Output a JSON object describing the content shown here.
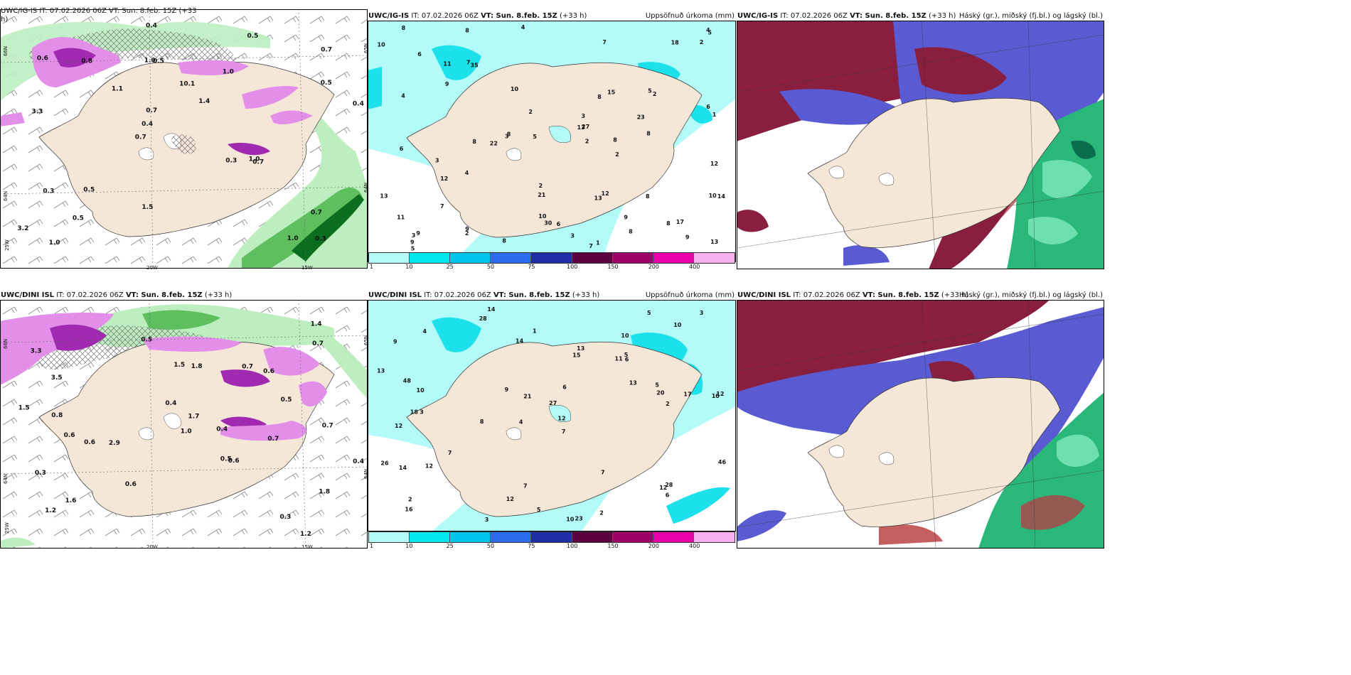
{
  "rows": [
    {
      "model": "UWC/IG-IS",
      "left_header_clipped": "UWC/IG-IS IT: 07.02.2026 06Z VT: Sun. 8.feb. 15Z (+33",
      "left_header_line2": "h)",
      "it": "IT: 07.02.2026 06Z",
      "vt": "VT: Sun. 8.feb. 15Z",
      "lead": "(+33 h)",
      "axis": {
        "lat_left": "66N",
        "lat_right": "65N",
        "lat_low": "64N",
        "lon_far": "25W",
        "lon_a": "20W",
        "lon_b": "15W",
        "lat_right_low": "64N"
      },
      "labels_left": [
        "0.3",
        "3.3",
        "0.7",
        "0.7",
        "1.0",
        "1.0",
        "1.0",
        "10.1",
        "0.3",
        "1.1",
        "3.2",
        "0.5",
        "0.5",
        "1.4",
        "0.7",
        "0.6",
        "0.4",
        "0.4",
        "0.3",
        "0.5",
        "0.4",
        "1.5",
        "0.7",
        "0.8",
        "0.5",
        "0.5",
        "1.0",
        "0.7",
        "1.0"
      ],
      "labels_mid": [
        "8",
        "7",
        "9",
        "9",
        "8",
        "6",
        "8",
        "9",
        "4",
        "10",
        "18",
        "30",
        "8",
        "21",
        "7",
        "13",
        "4",
        "2",
        "22",
        "10",
        "13",
        "5",
        "3",
        "3",
        "2",
        "3",
        "13",
        "12",
        "8",
        "2",
        "5",
        "1",
        "2",
        "2",
        "7",
        "8",
        "10",
        "11",
        "15",
        "17",
        "27",
        "23",
        "14",
        "9",
        "35",
        "12",
        "12",
        "3",
        "11",
        "10",
        "4",
        "6",
        "13",
        "8",
        "4",
        "5",
        "3",
        "2",
        "7",
        "6",
        "8",
        "8",
        "9",
        "8",
        "6",
        "9",
        "2",
        "1",
        "5",
        "8"
      ],
      "labels_right": []
    },
    {
      "model": "UWC/DINI ISL",
      "left_header_clipped": "UWC/DINI ISL IT: 07.02.2026 06Z VT: Sun. 8.feb. 15Z (+33 h)",
      "left_header_line2": "",
      "it": "IT: 07.02.2026 06Z",
      "vt": "VT: Sun. 8.feb. 15Z",
      "lead": "(+33 h)",
      "axis": {
        "lat_left": "66N",
        "lat_right": "65N",
        "lat_low": "64N",
        "lon_far": "25W",
        "lon_a": "20W",
        "lon_b": "15W",
        "lat_right_low": "64N"
      },
      "labels_left": [
        "1.2",
        "0.6",
        "0.5",
        "3.3",
        "1.8",
        "3.5",
        "1.6",
        "2.9",
        "0.6",
        "1.5",
        "0.7",
        "0.3",
        "0.6",
        "0.5",
        "0.4",
        "0.3",
        "0.7",
        "1.7",
        "1.5",
        "1.2",
        "1.4",
        "1.8",
        "0.5",
        "0.4",
        "0.7",
        "0.8",
        "0.6",
        "1.0",
        "0.4",
        "0.7",
        "0.6"
      ],
      "labels_mid": [
        "14",
        "10",
        "10",
        "4",
        "7",
        "3",
        "9",
        "11",
        "12",
        "15",
        "27",
        "16",
        "28",
        "8",
        "10",
        "23",
        "7",
        "5",
        "13",
        "7",
        "10",
        "18",
        "12",
        "17",
        "26",
        "48",
        "21",
        "20",
        "28",
        "14",
        "12",
        "13",
        "12",
        "9",
        "7",
        "46",
        "5",
        "12",
        "3",
        "1",
        "2",
        "3",
        "2",
        "4",
        "5",
        "6",
        "6",
        "5",
        "13",
        "12",
        "14",
        "2",
        "6",
        "10"
      ],
      "labels_right": []
    }
  ],
  "mid_title": "Uppsöfnuð úrkoma (mm)",
  "right_title": "Háský (gr.), miðský (fj.bl.) og lágský (bl.)",
  "legend": {
    "ticks": [
      "1",
      "10",
      "25",
      "50",
      "75",
      "100",
      "150",
      "200",
      "400"
    ],
    "colors": [
      "#b3fbf9",
      "#00e7ee",
      "#00c4ea",
      "#2a6cec",
      "#1e2ea6",
      "#5c0040",
      "#a0006a",
      "#ea00a8",
      "#f6b0ee"
    ]
  },
  "colors": {
    "land": "#f5e7d8",
    "precip_light": "#b3fbf9",
    "precip_mid": "#1ce0ea",
    "green_light": "#bdeec0",
    "green_mid": "#5fbf5f",
    "green_dark": "#0a6e1e",
    "purple_light": "#e38fe9",
    "purple_dark": "#a02ab0",
    "high_cloud": "#8a1e3e",
    "mid_cloud": "#5a5ad2",
    "low_cloud": "#2ab87a",
    "low_cloud_light": "#6ee0b0"
  }
}
